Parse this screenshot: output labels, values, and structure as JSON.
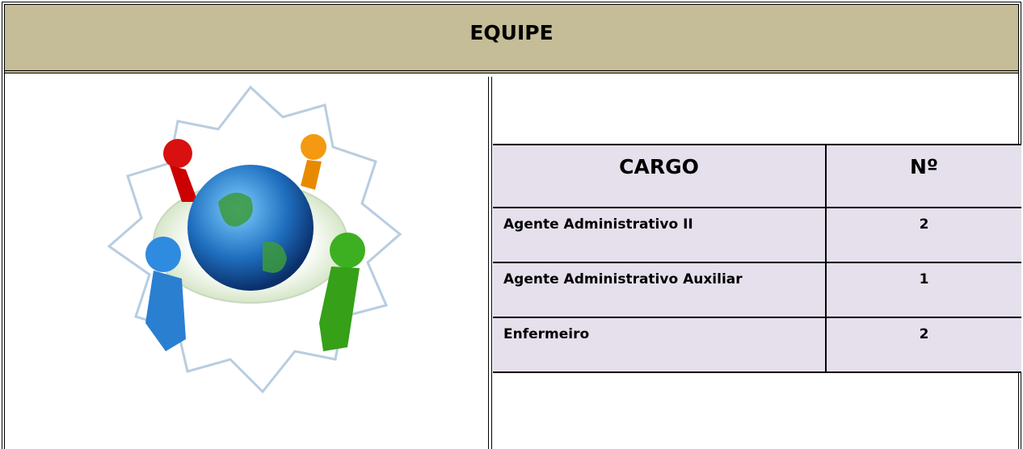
{
  "header": {
    "title": "EQUIPE"
  },
  "table": {
    "columns": [
      "CARGO",
      "Nº"
    ],
    "rows": [
      [
        "Agente Administrativo II",
        2
      ],
      [
        "Agente Administrativo Auxiliar",
        1
      ],
      [
        "Enfermeiro",
        2
      ]
    ]
  }
}
